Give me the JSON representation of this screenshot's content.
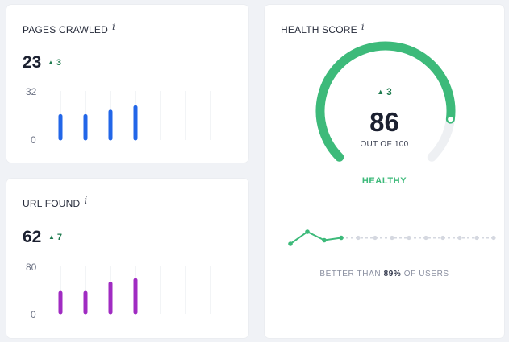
{
  "pages_crawled": {
    "title": "PAGES CRAWLED",
    "info_icon": "i",
    "value": "23",
    "delta": "3",
    "y_max_label": "32",
    "y_min_label": "0",
    "color": "#2266e8",
    "chart_data": {
      "type": "bar",
      "ylim": [
        0,
        32
      ],
      "values": [
        15,
        15,
        18,
        21,
        null,
        null,
        null
      ]
    }
  },
  "url_found": {
    "title": "URL FOUND",
    "info_icon": "i",
    "value": "62",
    "delta": "7",
    "y_max_label": "80",
    "y_min_label": "0",
    "color": "#a02bc2",
    "chart_data": {
      "type": "bar",
      "ylim": [
        0,
        80
      ],
      "values": [
        33,
        33,
        49,
        55,
        null,
        null,
        null
      ]
    }
  },
  "health": {
    "title": "HEALTH SCORE",
    "info_icon": "i",
    "delta": "3",
    "score": "86",
    "score_max_text": "OUT OF 100",
    "score_fraction": 0.86,
    "status": "HEALTHY",
    "color": "#3dba7a",
    "track_color": "#eef0f3",
    "compare_prefix": "BETTER THAN ",
    "compare_value": "89%",
    "compare_suffix": " OF USERS",
    "trend": {
      "active_color": "#3dba7a",
      "inactive_color": "#d5d8e0",
      "values": [
        2,
        3,
        2.3,
        2.5
      ],
      "pending_points": 9
    }
  }
}
